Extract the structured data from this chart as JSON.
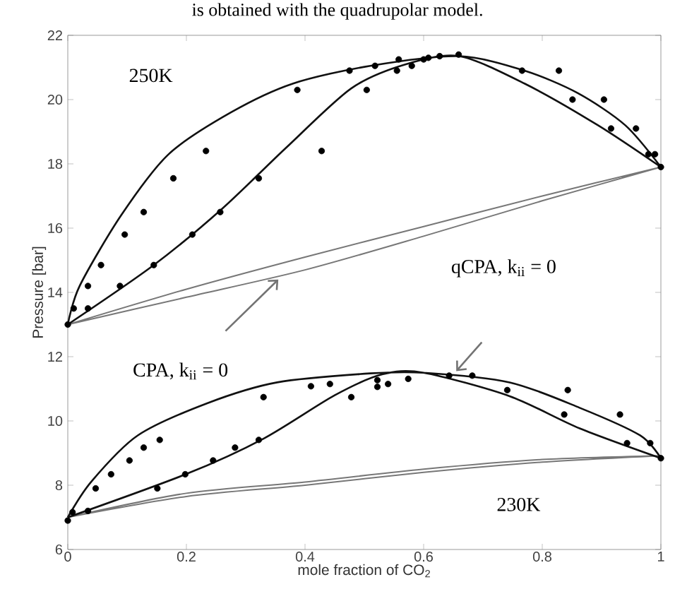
{
  "chart_data": {
    "type": "line",
    "xlabel": "mole fraction of CO$_{2}$",
    "ylabel": "Pressure [bar]",
    "xlim": [
      0,
      1
    ],
    "ylim": [
      6,
      22
    ],
    "xticks": [
      0,
      0.2,
      0.4,
      0.6,
      0.8,
      1
    ],
    "yticks": [
      6,
      8,
      10,
      12,
      14,
      16,
      18,
      20,
      22
    ],
    "annotations": [
      "is obtained with the quadrupolar model.",
      "250K",
      "230K",
      "qCPA, k$_{ii}$ = 0",
      "CPA, k$_{ii}$ = 0"
    ],
    "series": [
      {
        "color": "#777777",
        "x": [
          0,
          0.2,
          0.4,
          0.6,
          0.8,
          1,
          null,
          0,
          0.2,
          0.4,
          0.6,
          0.8,
          1
        ],
        "values": [
          13.0,
          14.1,
          15.1,
          16.05,
          17.0,
          17.9,
          null,
          13.0,
          13.85,
          14.7,
          15.75,
          16.85,
          17.9
        ]
      },
      {
        "color": "#777777",
        "x": [
          0,
          0.2,
          0.4,
          0.6,
          0.8,
          1,
          null,
          0,
          0.2,
          0.4,
          0.6,
          0.8,
          1
        ],
        "values": [
          7.0,
          7.75,
          8.1,
          8.5,
          8.8,
          8.92,
          null,
          7.0,
          7.65,
          8.0,
          8.4,
          8.72,
          8.92
        ]
      },
      {
        "color": "#111111",
        "x": [
          0,
          0.02,
          0.09,
          0.17,
          0.275,
          0.38,
          0.51,
          0.66,
          0.77,
          0.86,
          0.94,
          1,
          null,
          0,
          0.145,
          0.26,
          0.368,
          0.478,
          0.57,
          0.66,
          0.77,
          0.894,
          1
        ],
        "values": [
          13.0,
          14.2,
          16.4,
          18.3,
          19.6,
          20.5,
          21.05,
          21.35,
          20.9,
          20.2,
          19.2,
          17.9,
          null,
          13.0,
          14.85,
          16.6,
          18.5,
          20.35,
          21.1,
          21.35,
          20.5,
          19.2,
          17.9
        ]
      },
      {
        "color": "#111111",
        "x": [
          0,
          0.04,
          0.118,
          0.235,
          0.353,
          0.51,
          0.6,
          0.745,
          0.863,
          0.965,
          1,
          null,
          0,
          0.2,
          0.33,
          0.45,
          0.53,
          0.6,
          0.745,
          0.863,
          1
        ],
        "values": [
          7.0,
          8.12,
          9.55,
          10.55,
          11.2,
          11.48,
          11.5,
          11.2,
          10.41,
          9.55,
          8.84,
          null,
          7.0,
          8.35,
          9.45,
          10.8,
          11.45,
          11.5,
          10.77,
          9.77,
          8.84
        ]
      },
      {
        "type": "scatter",
        "marker": "circle",
        "color": "#000000",
        "x": [
          0,
          0.01,
          0.034,
          0.034,
          0.056,
          0.088,
          0.096,
          0.145,
          0.128,
          0.178,
          0.21,
          0.233,
          0.257,
          0.322,
          0.387,
          0.428,
          0.475,
          0.504,
          0.518,
          0.555,
          0.558,
          0.58,
          0.6,
          0.608,
          0.627,
          0.659,
          0.766,
          0.828,
          0.851,
          0.904,
          0.916,
          0.958,
          0.979,
          0.99,
          1.0
        ],
        "values": [
          13.0,
          13.5,
          13.5,
          14.2,
          14.85,
          14.2,
          15.8,
          14.85,
          16.5,
          17.55,
          15.8,
          18.4,
          16.5,
          17.55,
          20.3,
          18.4,
          20.9,
          20.3,
          21.05,
          20.9,
          21.25,
          21.05,
          21.25,
          21.3,
          21.35,
          21.4,
          20.9,
          20.9,
          20.0,
          20.0,
          19.1,
          19.1,
          18.3,
          18.3,
          17.9
        ]
      },
      {
        "type": "scatter",
        "marker": "circle",
        "color": "#000000",
        "x": [
          0,
          0.008,
          0.034,
          0.047,
          0.073,
          0.104,
          0.128,
          0.155,
          0.151,
          0.198,
          0.245,
          0.282,
          0.322,
          0.33,
          0.41,
          0.442,
          0.478,
          0.522,
          0.522,
          0.54,
          0.574,
          0.643,
          0.682,
          0.741,
          0.837,
          0.843,
          0.931,
          0.943,
          0.982,
          1.0
        ],
        "values": [
          6.9,
          7.16,
          7.2,
          7.9,
          8.34,
          8.77,
          9.17,
          9.41,
          7.9,
          8.34,
          8.77,
          9.17,
          9.41,
          10.74,
          11.08,
          11.15,
          10.74,
          11.27,
          11.06,
          11.15,
          11.31,
          11.41,
          11.41,
          10.96,
          10.2,
          10.96,
          10.2,
          9.31,
          9.31,
          8.84
        ]
      }
    ]
  }
}
